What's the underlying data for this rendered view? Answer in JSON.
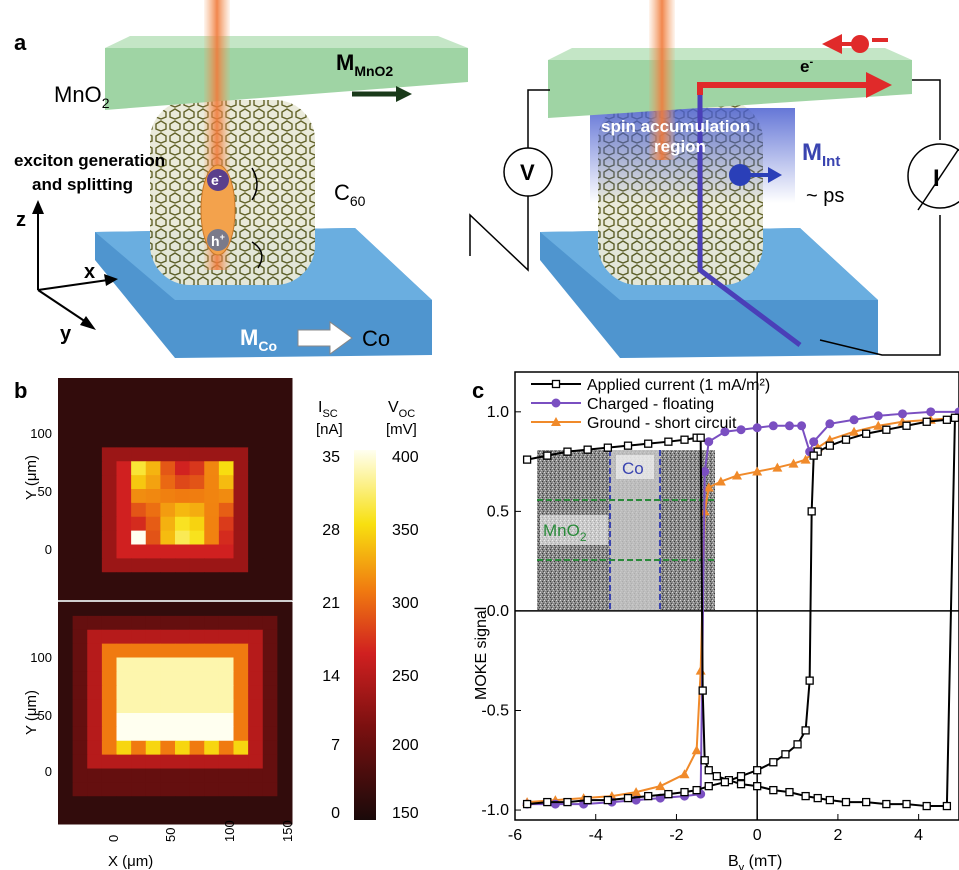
{
  "panel_a": {
    "label": "a",
    "left": {
      "mno2": "MnO",
      "mno2_sub": "2",
      "m_mno2": "M",
      "m_mno2_sub": "MnO2",
      "exciton_line1": "exciton generation",
      "exciton_line2": "and splitting",
      "electron": "e",
      "electron_sup": "-",
      "hole": "h",
      "hole_sup": "+",
      "c60": "C",
      "c60_sub": "60",
      "axis_z": "z",
      "axis_x": "x",
      "axis_y": "y",
      "m_co": "M",
      "m_co_sub": "Co",
      "co": "Co"
    },
    "right": {
      "electron": "e",
      "electron_sup": "-",
      "spin_line1": "spin  accumulation",
      "spin_line2": "region",
      "m_int": "M",
      "m_int_sub": "Int",
      "ps": "~ ps",
      "voltmeter": "V",
      "ammeter": "I"
    },
    "colors": {
      "mno2_layer": "#9fd4a4",
      "co_layer": "#5a9fd6",
      "beam": "#f39a5a",
      "current_arrow": "#e03030",
      "spin_region": "#5a6fd8",
      "molecule": "#6b6a2a"
    }
  },
  "panel_b": {
    "label": "b",
    "isc_label": "I",
    "isc_sub": "SC",
    "isc_unit": "[nA]",
    "voc_label": "V",
    "voc_sub": "OC",
    "voc_unit": "[mV]",
    "isc_ticks": [
      "35",
      "28",
      "21",
      "14",
      "7",
      "0"
    ],
    "voc_ticks": [
      "400",
      "350",
      "300",
      "250",
      "200",
      "150"
    ],
    "y_label": "Y (μm)",
    "x_label": "X (μm)",
    "y_ticks": [
      "100",
      "50",
      "0"
    ],
    "x_ticks": [
      "0",
      "50",
      "100",
      "150"
    ]
  },
  "chart_data": {
    "type": "line",
    "xlabel": "B",
    "xlabel_sub": "y",
    "xlabel_unit": " (mT)",
    "ylabel": "MOKE signal",
    "xlim": [
      -6,
      5
    ],
    "ylim": [
      -1.05,
      1.2
    ],
    "x_ticks": [
      -6,
      -4,
      -2,
      0,
      2,
      4
    ],
    "y_ticks": [
      1.0,
      0.5,
      0.0,
      -0.5,
      -1.0
    ],
    "y_tick_labels": [
      "1.0",
      "0.5",
      "0.0",
      "-0.5",
      "-1.0"
    ],
    "legend_position": "top",
    "series": [
      {
        "name": "Applied current (1 mA/m²)",
        "color": "#000000",
        "marker": "square",
        "x": [
          -5.7,
          -5.2,
          -4.7,
          -4.2,
          -3.7,
          -3.2,
          -2.7,
          -2.2,
          -1.8,
          -1.5,
          -1.4,
          -1.35,
          -1.3,
          -1.2,
          -1.0,
          -0.7,
          -0.4,
          0.0,
          0.4,
          0.8,
          1.2,
          1.5,
          1.8,
          2.2,
          2.7,
          3.2,
          3.7,
          4.2,
          4.7,
          4.9,
          4.7,
          4.2,
          3.7,
          3.2,
          2.7,
          2.2,
          1.8,
          1.5,
          1.4,
          1.35,
          1.3,
          1.2,
          1.0,
          0.7,
          0.4,
          0.0,
          -0.4,
          -0.8,
          -1.2,
          -1.5,
          -1.8,
          -2.2,
          -2.7,
          -3.2,
          -3.7,
          -4.2,
          -4.7,
          -5.2,
          -5.7
        ],
        "y": [
          0.76,
          0.78,
          0.8,
          0.81,
          0.82,
          0.83,
          0.84,
          0.85,
          0.86,
          0.87,
          0.87,
          -0.4,
          -0.75,
          -0.8,
          -0.83,
          -0.85,
          -0.87,
          -0.88,
          -0.9,
          -0.91,
          -0.93,
          -0.94,
          -0.95,
          -0.96,
          -0.96,
          -0.97,
          -0.97,
          -0.98,
          -0.98,
          0.97,
          0.96,
          0.95,
          0.93,
          0.91,
          0.89,
          0.86,
          0.83,
          0.8,
          0.78,
          0.5,
          -0.35,
          -0.6,
          -0.67,
          -0.72,
          -0.76,
          -0.8,
          -0.83,
          -0.86,
          -0.88,
          -0.9,
          -0.91,
          -0.92,
          -0.93,
          -0.94,
          -0.95,
          -0.95,
          -0.96,
          -0.96,
          -0.97
        ]
      },
      {
        "name": "Charged - floating",
        "color": "#7a4fc1",
        "marker": "circle",
        "x": [
          -5.7,
          -5.0,
          -4.3,
          -3.6,
          -3.0,
          -2.4,
          -1.8,
          -1.4,
          -1.3,
          -1.2,
          -0.8,
          -0.4,
          0.0,
          0.4,
          0.8,
          1.1,
          1.3,
          1.4,
          1.8,
          2.4,
          3.0,
          3.6,
          4.3,
          5.0
        ],
        "y": [
          -0.97,
          -0.97,
          -0.97,
          -0.96,
          -0.95,
          -0.94,
          -0.93,
          -0.92,
          0.7,
          0.85,
          0.9,
          0.91,
          0.92,
          0.93,
          0.93,
          0.93,
          0.8,
          0.85,
          0.94,
          0.96,
          0.98,
          0.99,
          1.0,
          1.0
        ]
      },
      {
        "name": "Ground - short circuit",
        "color": "#f08a2a",
        "marker": "triangle",
        "x": [
          -5.7,
          -5.0,
          -4.3,
          -3.6,
          -3.0,
          -2.4,
          -1.8,
          -1.5,
          -1.4,
          -1.3,
          -1.2,
          -0.9,
          -0.5,
          0.0,
          0.5,
          0.9,
          1.2,
          1.4,
          1.5,
          1.8,
          2.4,
          3.0,
          3.6,
          4.3,
          5.0
        ],
        "y": [
          -0.96,
          -0.95,
          -0.94,
          -0.93,
          -0.91,
          -0.88,
          -0.82,
          -0.7,
          -0.3,
          0.5,
          0.62,
          0.65,
          0.68,
          0.7,
          0.72,
          0.74,
          0.76,
          0.8,
          0.82,
          0.86,
          0.9,
          0.93,
          0.95,
          0.96,
          0.97
        ]
      }
    ]
  },
  "panel_c": {
    "label": "c",
    "inset_co": "Co",
    "inset_mno2": "MnO",
    "inset_mno2_sub": "2"
  }
}
